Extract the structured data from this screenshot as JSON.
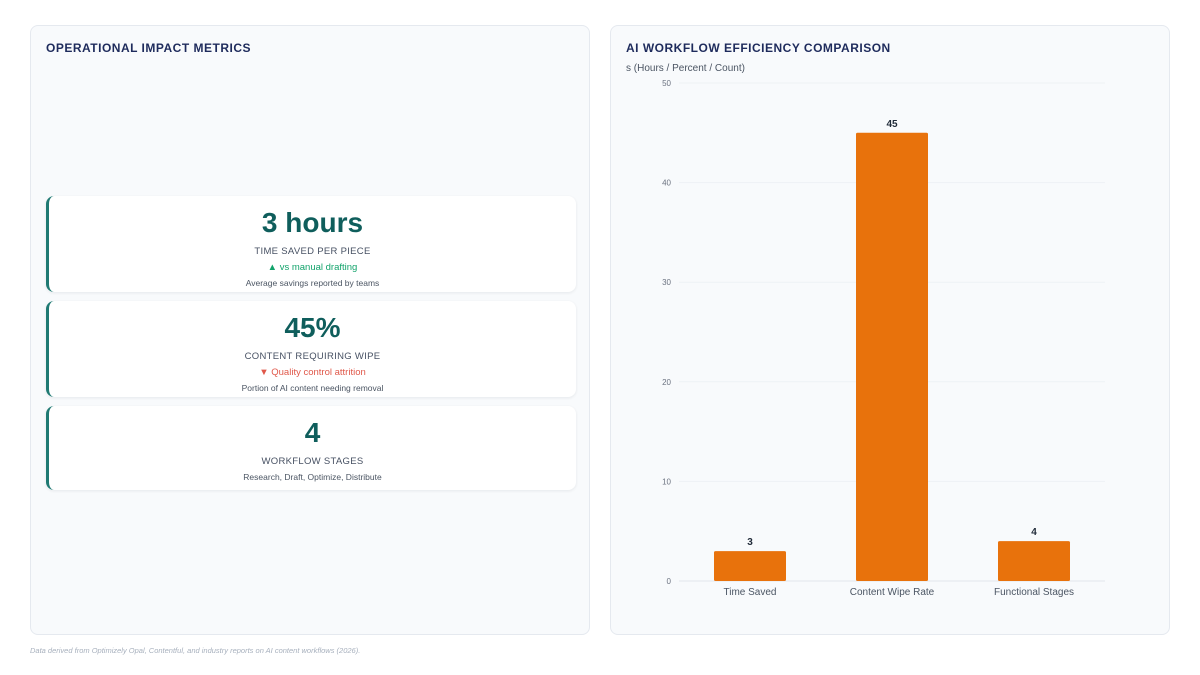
{
  "left_panel": {
    "title": "OPERATIONAL IMPACT METRICS",
    "cards": [
      {
        "value": "3 hours",
        "label": "TIME SAVED PER PIECE",
        "trend": "▲ vs manual drafting",
        "trend_dir": "up",
        "note": "Average savings reported by teams"
      },
      {
        "value": "45%",
        "label": "CONTENT REQUIRING WIPE",
        "trend": "▼ Quality control attrition",
        "trend_dir": "down",
        "note": "Portion of AI content needing removal"
      },
      {
        "value": "4",
        "label": "WORKFLOW STAGES",
        "note": "Research, Draft, Optimize, Distribute"
      }
    ]
  },
  "right_panel": {
    "title": "AI WORKFLOW EFFICIENCY COMPARISON"
  },
  "chart_data": {
    "type": "bar",
    "title": "AI WORKFLOW EFFICIENCY COMPARISON",
    "ylabel": "s (Hours / Percent / Count)",
    "xlabel": "",
    "categories": [
      "Time Saved",
      "Content Wipe Rate",
      "Functional Stages"
    ],
    "values": [
      3,
      45,
      4
    ],
    "ylim": [
      0,
      50
    ],
    "yticks": [
      0,
      10,
      20,
      30,
      40,
      50
    ],
    "data_labels": true,
    "grid": true,
    "legend": "none",
    "bar_color": "#e8720c"
  },
  "footnote": "Data derived from Optimizely Opal, Contentful, and industry reports on AI content workflows (2026)."
}
